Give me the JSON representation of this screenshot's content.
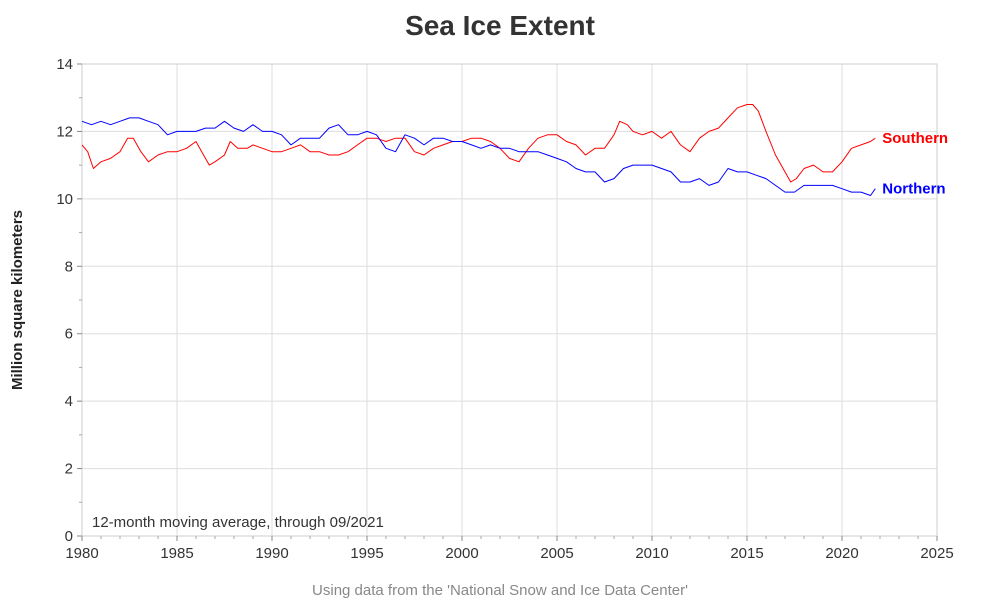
{
  "chart_data": {
    "type": "line",
    "title": "Sea Ice Extent",
    "xlabel": "",
    "ylabel": "Million square kilometers",
    "annotation": "12-month moving average, through 09/2021",
    "source": "Using data from the 'National Snow and Ice Data Center'",
    "xlim": [
      1980,
      2025
    ],
    "ylim": [
      0,
      14
    ],
    "x_ticks": [
      "1980",
      "1985",
      "1990",
      "1995",
      "2000",
      "2005",
      "2010",
      "2015",
      "2020",
      "2025"
    ],
    "y_ticks": [
      "0",
      "2",
      "4",
      "6",
      "8",
      "10",
      "12",
      "14"
    ],
    "grid": true,
    "series": [
      {
        "name": "Southern",
        "color": "#ff0000",
        "x": [
          1980.0,
          1980.3,
          1980.6,
          1981.0,
          1981.5,
          1982.0,
          1982.4,
          1982.7,
          1983.1,
          1983.5,
          1984.0,
          1984.5,
          1985.0,
          1985.5,
          1986.0,
          1986.3,
          1986.7,
          1987.0,
          1987.5,
          1987.8,
          1988.2,
          1988.7,
          1989.0,
          1989.5,
          1990.0,
          1990.5,
          1991.0,
          1991.5,
          1992.0,
          1992.5,
          1993.0,
          1993.5,
          1994.0,
          1994.5,
          1995.0,
          1995.5,
          1996.0,
          1996.5,
          1997.0,
          1997.5,
          1998.0,
          1998.5,
          1999.0,
          1999.5,
          2000.0,
          2000.5,
          2001.0,
          2001.5,
          2002.0,
          2002.5,
          2003.0,
          2003.5,
          2004.0,
          2004.5,
          2005.0,
          2005.5,
          2006.0,
          2006.5,
          2007.0,
          2007.5,
          2008.0,
          2008.3,
          2008.7,
          2009.0,
          2009.5,
          2010.0,
          2010.5,
          2011.0,
          2011.5,
          2012.0,
          2012.5,
          2013.0,
          2013.5,
          2014.0,
          2014.5,
          2015.0,
          2015.3,
          2015.6,
          2016.0,
          2016.5,
          2017.0,
          2017.3,
          2017.6,
          2018.0,
          2018.5,
          2019.0,
          2019.5,
          2020.0,
          2020.5,
          2021.0,
          2021.5,
          2021.75
        ],
        "y": [
          11.6,
          11.4,
          10.9,
          11.1,
          11.2,
          11.4,
          11.8,
          11.8,
          11.4,
          11.1,
          11.3,
          11.4,
          11.4,
          11.5,
          11.7,
          11.4,
          11.0,
          11.1,
          11.3,
          11.7,
          11.5,
          11.5,
          11.6,
          11.5,
          11.4,
          11.4,
          11.5,
          11.6,
          11.4,
          11.4,
          11.3,
          11.3,
          11.4,
          11.6,
          11.8,
          11.8,
          11.7,
          11.8,
          11.8,
          11.4,
          11.3,
          11.5,
          11.6,
          11.7,
          11.7,
          11.8,
          11.8,
          11.7,
          11.5,
          11.2,
          11.1,
          11.5,
          11.8,
          11.9,
          11.9,
          11.7,
          11.6,
          11.3,
          11.5,
          11.5,
          11.9,
          12.3,
          12.2,
          12.0,
          11.9,
          12.0,
          11.8,
          12.0,
          11.6,
          11.4,
          11.8,
          12.0,
          12.1,
          12.4,
          12.7,
          12.8,
          12.8,
          12.6,
          12.0,
          11.3,
          10.8,
          10.5,
          10.6,
          10.9,
          11.0,
          10.8,
          10.8,
          11.1,
          11.5,
          11.6,
          11.7,
          11.8
        ]
      },
      {
        "name": "Northern",
        "color": "#0000ff",
        "x": [
          1980.0,
          1980.5,
          1981.0,
          1981.5,
          1982.0,
          1982.5,
          1983.0,
          1983.5,
          1984.0,
          1984.5,
          1985.0,
          1985.5,
          1986.0,
          1986.5,
          1987.0,
          1987.5,
          1988.0,
          1988.5,
          1989.0,
          1989.5,
          1990.0,
          1990.5,
          1991.0,
          1991.5,
          1992.0,
          1992.5,
          1993.0,
          1993.5,
          1994.0,
          1994.5,
          1995.0,
          1995.5,
          1996.0,
          1996.5,
          1997.0,
          1997.5,
          1998.0,
          1998.5,
          1999.0,
          1999.5,
          2000.0,
          2000.5,
          2001.0,
          2001.5,
          2002.0,
          2002.5,
          2003.0,
          2003.5,
          2004.0,
          2004.5,
          2005.0,
          2005.5,
          2006.0,
          2006.5,
          2007.0,
          2007.5,
          2008.0,
          2008.5,
          2009.0,
          2009.5,
          2010.0,
          2010.5,
          2011.0,
          2011.5,
          2012.0,
          2012.5,
          2013.0,
          2013.5,
          2014.0,
          2014.5,
          2015.0,
          2015.5,
          2016.0,
          2016.5,
          2017.0,
          2017.5,
          2018.0,
          2018.5,
          2019.0,
          2019.5,
          2020.0,
          2020.5,
          2021.0,
          2021.5,
          2021.75
        ],
        "y": [
          12.3,
          12.2,
          12.3,
          12.2,
          12.3,
          12.4,
          12.4,
          12.3,
          12.2,
          11.9,
          12.0,
          12.0,
          12.0,
          12.1,
          12.1,
          12.3,
          12.1,
          12.0,
          12.2,
          12.0,
          12.0,
          11.9,
          11.6,
          11.8,
          11.8,
          11.8,
          12.1,
          12.2,
          11.9,
          11.9,
          12.0,
          11.9,
          11.5,
          11.4,
          11.9,
          11.8,
          11.6,
          11.8,
          11.8,
          11.7,
          11.7,
          11.6,
          11.5,
          11.6,
          11.5,
          11.5,
          11.4,
          11.4,
          11.4,
          11.3,
          11.2,
          11.1,
          10.9,
          10.8,
          10.8,
          10.5,
          10.6,
          10.9,
          11.0,
          11.0,
          11.0,
          10.9,
          10.8,
          10.5,
          10.5,
          10.6,
          10.4,
          10.5,
          10.9,
          10.8,
          10.8,
          10.7,
          10.6,
          10.4,
          10.2,
          10.2,
          10.4,
          10.4,
          10.4,
          10.4,
          10.3,
          10.2,
          10.2,
          10.1,
          10.3
        ]
      }
    ]
  }
}
